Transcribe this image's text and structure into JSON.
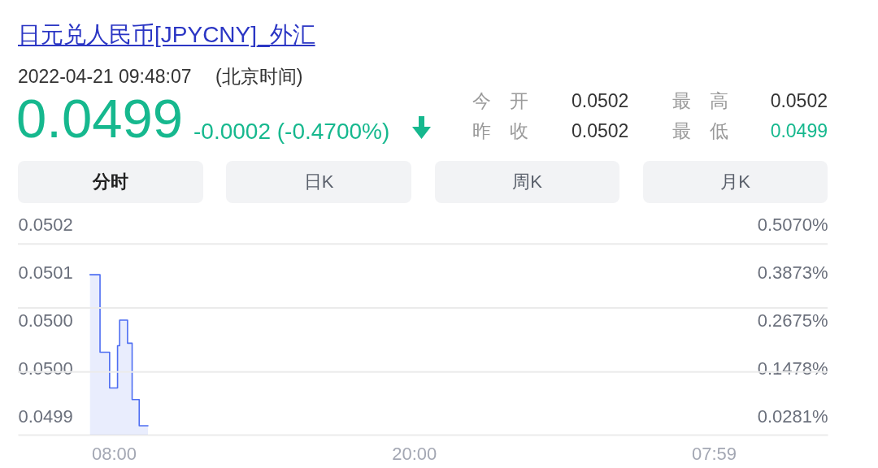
{
  "chart_data": {
    "type": "area",
    "title": "日元兑人民币[JPYCNY]_外汇",
    "subtitle": "2022-04-21 09:48:07",
    "annotations": [
      "(北京时间)",
      "0.0499",
      "-0.0002 (-0.4700%)",
      "今 开",
      "0.0502",
      "最 高",
      "0.0502",
      "昨 收",
      "0.0502",
      "最 低",
      "0.0499",
      "分时",
      "日K",
      "周K",
      "月K"
    ],
    "x": [
      "2022-04-21T07:03",
      "2022-04-21T07:27",
      "2022-04-21T07:27",
      "2022-04-21T07:50",
      "2022-04-21T07:50",
      "2022-04-21T08:09",
      "2022-04-21T08:09",
      "2022-04-21T08:14",
      "2022-04-21T08:14",
      "2022-04-21T08:33",
      "2022-04-21T08:33",
      "2022-04-21T08:44",
      "2022-04-21T08:44",
      "2022-04-21T09:01",
      "2022-04-21T09:01",
      "2022-04-21T09:22"
    ],
    "values": [
      0.050122,
      0.050122,
      0.050001,
      0.050001,
      0.049945,
      0.049945,
      0.050011,
      0.050011,
      0.050051,
      0.050051,
      0.050015,
      0.050015,
      0.049927,
      0.049927,
      0.049886,
      0.049886
    ],
    "color": "#4e6ef2",
    "xlim": [
      "2022-04-21T04:10",
      "2022-04-22T12:32"
    ],
    "xticks": [
      {
        "value": "2022-04-21T08:00",
        "label": "08:00"
      },
      {
        "value": "2022-04-21T20:00",
        "label": "20:00"
      },
      {
        "value": "2022-04-22T07:59",
        "label": "07:59"
      }
    ],
    "ylim": [
      0.049872,
      0.05022
    ],
    "yticks": [
      0.0502,
      {
        "value": 0.050125,
        "label": "0.0501"
      },
      {
        "value": 0.05005,
        "label": "0.0500"
      },
      {
        "value": 0.049975,
        "label": "0.0500"
      },
      0.0499
    ],
    "y2lim": [
      -0.0166,
      0.5389
    ],
    "y2ticks": [
      {
        "value": 0.507,
        "label": "0.5070%"
      },
      {
        "value": 0.3873,
        "label": "0.3873%"
      },
      {
        "value": 0.2675,
        "label": "0.2675%"
      },
      {
        "value": 0.1478,
        "label": "0.1478%"
      },
      {
        "value": 0.0281,
        "label": "0.0281%"
      }
    ],
    "ref_lines": [
      {
        "axis": "y",
        "value": 0.05017,
        "color": "#ebebeb"
      },
      {
        "axis": "y",
        "value": 0.05007,
        "color": "#ebebeb"
      },
      {
        "axis": "y",
        "value": 0.04997,
        "color": "#ebebeb"
      }
    ]
  }
}
